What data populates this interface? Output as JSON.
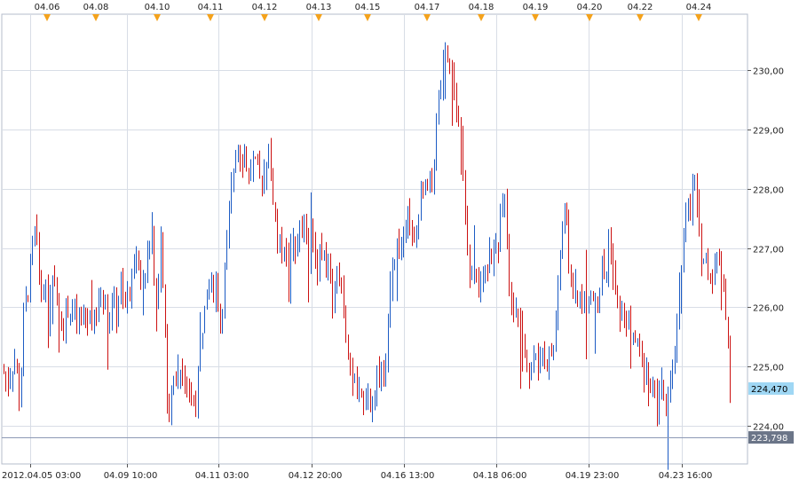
{
  "chart_data": {
    "type": "bar",
    "subtype": "ohlc",
    "title": "",
    "xlabel": "",
    "ylabel": "",
    "ylim": [
      223.35,
      230.95
    ],
    "y_ticks": [
      "224,00",
      "225,00",
      "226,00",
      "227,00",
      "228,00",
      "229,00",
      "230,00"
    ],
    "x_ticks": [
      "2012.04.05 03:00",
      "04.09 10:00",
      "04.11 03:00",
      "04.12 20:00",
      "04.16 13:00",
      "04.18 06:00",
      "04.19 23:00",
      "04.23 16:00"
    ],
    "date_markers": [
      "04.06",
      "04.08",
      "04.10",
      "04.11",
      "04.12",
      "04.13",
      "04.15",
      "04.17",
      "04.18",
      "04.19",
      "04.20",
      "04.22",
      "04.24"
    ],
    "current_price_label": "224,470",
    "reference_line_label": "223,798",
    "reference_line_value": 223.798,
    "grid": true,
    "colors": {
      "up": "#1c5bc4",
      "down": "#cc1111",
      "grid": "#d8dde6",
      "price_tag": "#9fd7f4",
      "reference_tag": "#6b7588",
      "reference_line": "#8d99b5",
      "marker": "#f4a21c",
      "frame": "#b5bccb"
    },
    "series_path": [
      224.9,
      224.7,
      225.0,
      225.1,
      224.3,
      225.9,
      226.3,
      226.9,
      227.4,
      226.2,
      226.5,
      225.8,
      226.4,
      226.2,
      225.8,
      225.7,
      226.0,
      225.9,
      225.8,
      225.7,
      225.9,
      225.8,
      225.9,
      225.8,
      226.3,
      226.2,
      225.7,
      226.2,
      225.8,
      226.4,
      225.9,
      226.3,
      226.4,
      227.0,
      226.5,
      226.4,
      227.3,
      227.1,
      225.9,
      227.3,
      226.0,
      223.8,
      224.7,
      224.8,
      225.0,
      224.9,
      224.7,
      224.3,
      224.5,
      225.2,
      225.8,
      226.5,
      226.3,
      226.4,
      225.6,
      226.6,
      227.4,
      228.2,
      228.9,
      228.5,
      228.6,
      228.2,
      228.5,
      228.3,
      228.1,
      228.4,
      228.7,
      228.0,
      227.2,
      227.0,
      227.1,
      226.3,
      227.2,
      226.9,
      227.4,
      227.3,
      227.0,
      227.2,
      226.6,
      227.0,
      226.6,
      226.9,
      226.1,
      226.8,
      226.3,
      225.9,
      225.0,
      224.8,
      224.6,
      224.4,
      224.5,
      224.5,
      224.2,
      224.7,
      224.8,
      225.0,
      226.0,
      226.6,
      227.0,
      227.2,
      227.4,
      227.7,
      227.0,
      227.4,
      228.1,
      227.9,
      228.2,
      228.0,
      229.4,
      229.8,
      230.4,
      230.1,
      229.8,
      229.2,
      228.9,
      227.5,
      226.3,
      226.5,
      226.3,
      226.2,
      226.7,
      226.8,
      227.0,
      226.9,
      227.5,
      228.0,
      226.3,
      226.1,
      225.9,
      225.5,
      225.3,
      224.9,
      225.2,
      225.0,
      225.3,
      225.1,
      225.2,
      225.3,
      226.3,
      227.3,
      227.7,
      226.6,
      226.3,
      226.1,
      226.2,
      225.9,
      226.2,
      226.1,
      226.0,
      226.7,
      226.4,
      227.4,
      226.3,
      226.0,
      225.8,
      225.8,
      225.6,
      225.5,
      225.3,
      225.1,
      225.0,
      224.6,
      224.5,
      224.3,
      224.9,
      224.3,
      224.6,
      225.2,
      225.7,
      226.8,
      227.8,
      227.4,
      228.3,
      227.4,
      226.8,
      226.8,
      226.5,
      226.7,
      226.9,
      226.6,
      225.8,
      224.5
    ]
  }
}
